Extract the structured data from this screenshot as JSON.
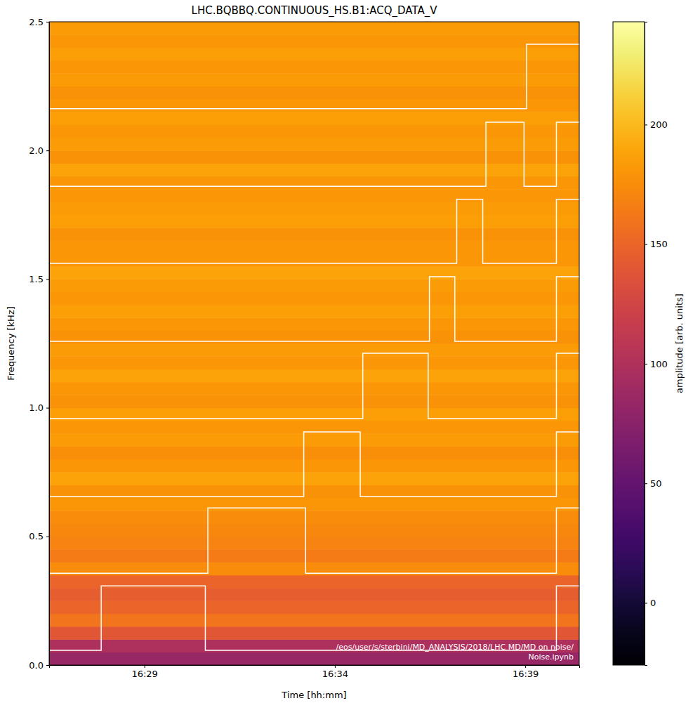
{
  "chart_data": {
    "type": "heatmap",
    "title": "LHC.BQBBQ.CONTINUOUS_HS.B1:ACQ_DATA_V",
    "x_label": "Time [hh:mm]",
    "y_label": "Frequency [kHz]",
    "xlim": [
      "16:26:30",
      "16:40:25"
    ],
    "xticks": [
      {
        "value": "16:29:00",
        "label": "16:29"
      },
      {
        "value": "16:34:00",
        "label": "16:34"
      },
      {
        "value": "16:39:00",
        "label": "16:39"
      }
    ],
    "ylim": [
      0,
      2.5
    ],
    "yticks": [
      {
        "value": 0,
        "label": "0.0"
      },
      0.5,
      {
        "value": 1,
        "label": "1.0"
      },
      1.5,
      {
        "value": 2,
        "label": "2.0"
      },
      2.5
    ],
    "heatmap": {
      "y_bins": [
        0,
        0.05,
        0.1,
        0.15,
        0.2,
        0.25,
        0.3,
        0.35,
        0.4,
        0.45,
        0.5,
        0.55,
        0.6,
        0.65,
        0.7,
        0.75,
        0.8,
        0.85,
        0.9,
        0.95,
        1.0,
        1.05,
        1.1,
        1.15,
        1.2,
        1.25,
        1.3,
        1.35,
        1.4,
        1.45,
        1.5,
        1.55,
        1.6,
        1.65,
        1.7,
        1.75,
        1.8,
        1.85,
        1.9,
        1.95,
        2.0,
        2.05,
        2.1,
        2.15,
        2.2,
        2.25,
        2.3,
        2.35,
        2.4,
        2.45,
        2.5
      ],
      "values": [
        85,
        100,
        140,
        160,
        150,
        145,
        150,
        175,
        165,
        170,
        172,
        175,
        182,
        178,
        188,
        180,
        176,
        184,
        180,
        186,
        178,
        182,
        188,
        180,
        184,
        178,
        182,
        186,
        180,
        184,
        188,
        180,
        182,
        178,
        186,
        184,
        180,
        182,
        188,
        178,
        184,
        180,
        186,
        182,
        178,
        184,
        180,
        186,
        182,
        184
      ]
    },
    "colorbar": {
      "label": "amplitude [arb. units]",
      "range": [
        -26,
        243
      ],
      "ticks": [
        0,
        50,
        100,
        150,
        200
      ]
    },
    "series": [
      {
        "color": "white",
        "line_style": "step",
        "x": [
          "16:26:30",
          "16:27:52",
          "16:30:36",
          "16:39:49",
          "16:40:25"
        ],
        "values": [
          0.057,
          0.308,
          0.057,
          0.308,
          0.308
        ]
      },
      {
        "color": "white",
        "line_style": "step",
        "x": [
          "16:26:30",
          "16:30:40",
          "16:33:14",
          "16:39:49",
          "16:40:25"
        ],
        "values": [
          0.357,
          0.611,
          0.357,
          0.611,
          0.611
        ]
      },
      {
        "color": "white",
        "line_style": "step",
        "x": [
          "16:26:30",
          "16:33:11",
          "16:34:40",
          "16:39:49",
          "16:40:25"
        ],
        "values": [
          0.655,
          0.906,
          0.655,
          0.906,
          0.906
        ]
      },
      {
        "color": "white",
        "line_style": "step",
        "x": [
          "16:26:30",
          "16:34:44",
          "16:36:27",
          "16:39:49",
          "16:40:25"
        ],
        "values": [
          0.958,
          1.212,
          0.958,
          1.212,
          1.212
        ]
      },
      {
        "color": "white",
        "line_style": "step",
        "x": [
          "16:26:30",
          "16:36:29",
          "16:37:09",
          "16:39:49",
          "16:40:25"
        ],
        "values": [
          1.258,
          1.509,
          1.258,
          1.509,
          1.509
        ]
      },
      {
        "color": "white",
        "line_style": "step",
        "x": [
          "16:26:30",
          "16:37:12",
          "16:37:53",
          "16:39:49",
          "16:40:25"
        ],
        "values": [
          1.561,
          1.81,
          1.561,
          1.81,
          1.81
        ]
      },
      {
        "color": "white",
        "line_style": "step",
        "x": [
          "16:26:30",
          "16:37:58",
          "16:38:58",
          "16:39:49",
          "16:40:25"
        ],
        "values": [
          1.861,
          2.11,
          1.861,
          2.11,
          2.11
        ]
      },
      {
        "color": "white",
        "line_style": "step",
        "x": [
          "16:26:30",
          "16:39:02",
          "16:40:25"
        ],
        "values": [
          2.162,
          2.413,
          2.413
        ]
      }
    ],
    "annotation": [
      "/eos/user/s/sterbini/MD_ANALYSIS/2018/LHC MD/MD on noise/",
      "Noise.ipynb"
    ]
  }
}
